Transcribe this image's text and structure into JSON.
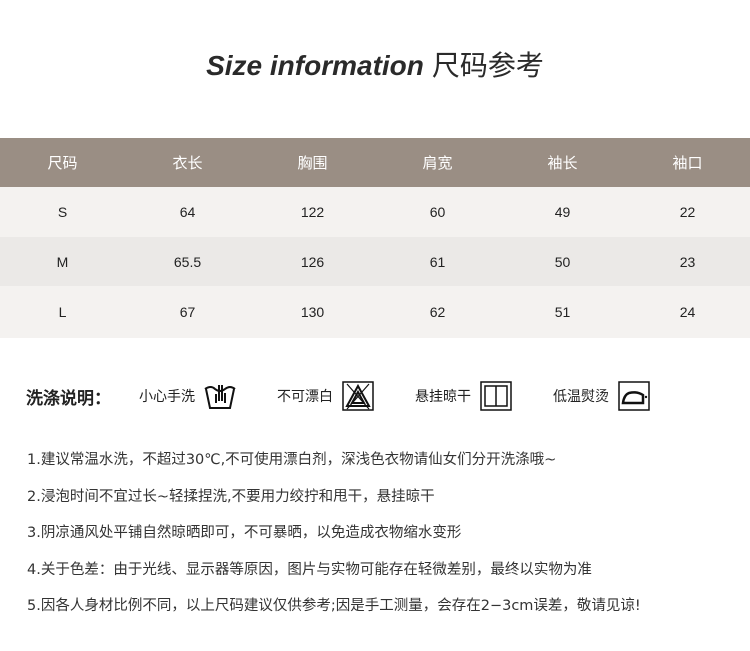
{
  "title": {
    "en": "Size information",
    "cn": "尺码参考"
  },
  "table": {
    "headers": [
      "尺码",
      "衣长",
      "胸围",
      "肩宽",
      "袖长",
      "袖口"
    ],
    "rows": [
      [
        "S",
        "64",
        "122",
        "60",
        "49",
        "22"
      ],
      [
        "M",
        "65.5",
        "126",
        "61",
        "50",
        "23"
      ],
      [
        "L",
        "67",
        "130",
        "62",
        "51",
        "24"
      ]
    ]
  },
  "care": {
    "title": "洗涤说明：",
    "items": [
      {
        "label": "小心手洗",
        "icon": "hand-wash-icon"
      },
      {
        "label": "不可漂白",
        "icon": "no-bleach-icon"
      },
      {
        "label": "悬挂晾干",
        "icon": "line-dry-icon"
      },
      {
        "label": "低温熨烫",
        "icon": "low-iron-icon"
      }
    ]
  },
  "notes": [
    "1.建议常温水洗，不超过30℃,不可使用漂白剂，深浅色衣物请仙女们分开洗涤哦~",
    "2.浸泡时间不宜过长~轻揉捏洗,不要用力绞拧和甩干，悬挂晾干",
    "3.阴凉通风处平铺自然晾晒即可，不可暴晒，以免造成衣物缩水变形",
    "4.关于色差：由于光线、显示器等原因，图片与实物可能存在轻微差别，最终以实物为准",
    "5.因各人身材比例不同，以上尺码建议仅供参考;因是手工测量，会存在2−3cm误差，敬请见谅!"
  ],
  "colors": {
    "header_bg": "#9a8e84",
    "row_light": "#f4f2f0",
    "row_dark": "#ebe9e7"
  }
}
